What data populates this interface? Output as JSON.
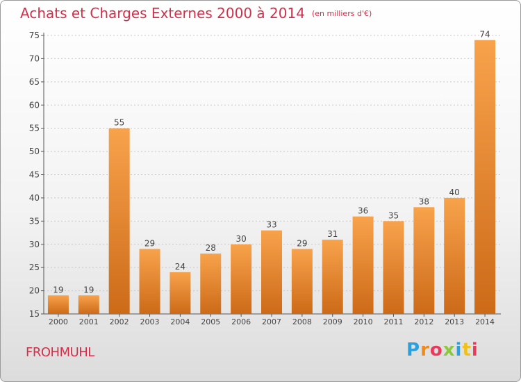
{
  "title": "Achats et Charges Externes 2000 à 2014",
  "subtitle": "(en milliers d'€)",
  "commune": "FROHMUHL",
  "logo": {
    "letters": [
      "P",
      "r",
      "o",
      "x",
      "i",
      "t",
      "i"
    ],
    "colors": [
      "#2aa0dc",
      "#f08a1c",
      "#e83a5a",
      "#8cc83c",
      "#2aa0dc",
      "#f0c01c",
      "#e83a5a"
    ]
  },
  "colors": {
    "bar_top": "#f8a24c",
    "bar_bottom": "#cc6a18",
    "title": "#d0304a"
  },
  "chart_data": {
    "type": "bar",
    "title": "Achats et Charges Externes 2000 à 2014",
    "subtitle": "(en milliers d'€)",
    "categories": [
      "2000",
      "2001",
      "2002",
      "2003",
      "2004",
      "2005",
      "2006",
      "2007",
      "2008",
      "2009",
      "2010",
      "2011",
      "2012",
      "2013",
      "2014"
    ],
    "values": [
      19,
      19,
      55,
      29,
      24,
      28,
      30,
      33,
      29,
      31,
      36,
      35,
      38,
      40,
      74
    ],
    "ylim": [
      15,
      75
    ],
    "yticks": [
      15,
      20,
      25,
      30,
      35,
      40,
      45,
      50,
      55,
      60,
      65,
      70,
      75
    ],
    "grid": true
  }
}
